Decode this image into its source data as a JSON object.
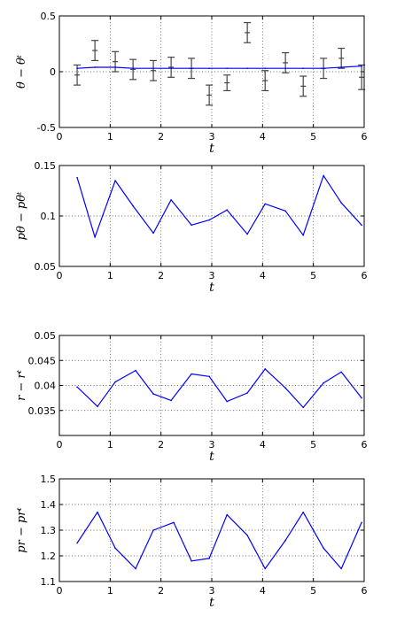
{
  "chart_data": [
    {
      "type": "line",
      "xlabel": "t",
      "ylabel": "θ − θᵗ",
      "xlim": [
        0,
        6
      ],
      "ylim": [
        -0.5,
        0.5
      ],
      "xticks": [
        "0",
        "1",
        "2",
        "3",
        "4",
        "5",
        "6"
      ],
      "yticks": [
        "-0.5",
        "0",
        "0.5"
      ],
      "grid": true,
      "line_color": "#0000ff",
      "errorbar_color": "#444444",
      "series": [
        {
          "x": [
            0.35,
            0.7,
            1.1,
            1.45,
            1.85,
            2.2,
            2.6,
            2.95,
            3.3,
            3.7,
            4.05,
            4.45,
            4.8,
            5.2,
            5.55,
            5.95
          ],
          "values": [
            0.03,
            0.04,
            0.04,
            0.03,
            0.03,
            0.03,
            0.03,
            0.03,
            0.03,
            0.03,
            0.03,
            0.03,
            0.03,
            0.03,
            0.04,
            0.05
          ]
        }
      ],
      "errorbars": [
        {
          "x": 0.35,
          "y": -0.03,
          "err": 0.09
        },
        {
          "x": 0.7,
          "y": 0.19,
          "err": 0.09
        },
        {
          "x": 1.1,
          "y": 0.09,
          "err": 0.09
        },
        {
          "x": 1.45,
          "y": 0.02,
          "err": 0.09
        },
        {
          "x": 1.85,
          "y": 0.01,
          "err": 0.09
        },
        {
          "x": 2.2,
          "y": 0.04,
          "err": 0.09
        },
        {
          "x": 2.6,
          "y": 0.03,
          "err": 0.09
        },
        {
          "x": 2.95,
          "y": -0.21,
          "err": 0.09
        },
        {
          "x": 3.3,
          "y": -0.1,
          "err": 0.07
        },
        {
          "x": 3.7,
          "y": 0.35,
          "err": 0.09
        },
        {
          "x": 4.05,
          "y": -0.08,
          "err": 0.09
        },
        {
          "x": 4.45,
          "y": 0.08,
          "err": 0.09
        },
        {
          "x": 4.8,
          "y": -0.13,
          "err": 0.09
        },
        {
          "x": 5.2,
          "y": 0.03,
          "err": 0.09
        },
        {
          "x": 5.55,
          "y": 0.12,
          "err": 0.09
        },
        {
          "x": 5.95,
          "y": -0.05,
          "err": 0.11
        }
      ]
    },
    {
      "type": "line",
      "xlabel": "t",
      "ylabel": "pθ − pθᵗ",
      "xlim": [
        0,
        6
      ],
      "ylim": [
        0.05,
        0.15
      ],
      "xticks": [
        "0",
        "1",
        "2",
        "3",
        "4",
        "5",
        "6"
      ],
      "yticks": [
        "0.05",
        "0.1",
        "0.15"
      ],
      "grid": true,
      "line_color": "#0000ff",
      "series": [
        {
          "x": [
            0.35,
            0.7,
            1.1,
            1.45,
            1.85,
            2.2,
            2.6,
            2.95,
            3.3,
            3.7,
            4.05,
            4.45,
            4.8,
            5.2,
            5.55,
            5.95
          ],
          "values": [
            0.138,
            0.079,
            0.135,
            0.11,
            0.083,
            0.116,
            0.091,
            0.096,
            0.106,
            0.082,
            0.112,
            0.105,
            0.081,
            0.14,
            0.113,
            0.091
          ]
        }
      ]
    },
    {
      "type": "line",
      "xlabel": "t",
      "ylabel": "r − rᵗ",
      "xlim": [
        0,
        6
      ],
      "ylim": [
        0.03,
        0.05
      ],
      "xticks": [
        "0",
        "1",
        "2",
        "3",
        "4",
        "5",
        "6"
      ],
      "yticks": [
        "0.035",
        "0.04",
        "0.045",
        "0.05"
      ],
      "grid": true,
      "line_color": "#0000ff",
      "series": [
        {
          "x": [
            0.35,
            0.75,
            1.1,
            1.5,
            1.85,
            2.2,
            2.6,
            2.95,
            3.3,
            3.7,
            4.05,
            4.45,
            4.8,
            5.2,
            5.55,
            5.95
          ],
          "values": [
            0.0397,
            0.0358,
            0.0407,
            0.043,
            0.0383,
            0.037,
            0.0423,
            0.0418,
            0.0368,
            0.0385,
            0.0433,
            0.0395,
            0.0356,
            0.0405,
            0.0427,
            0.0375
          ]
        }
      ]
    },
    {
      "type": "line",
      "xlabel": "t",
      "ylabel": "pr − prᵗ",
      "xlim": [
        0,
        6
      ],
      "ylim": [
        1.1,
        1.5
      ],
      "xticks": [
        "0",
        "1",
        "2",
        "3",
        "4",
        "5",
        "6"
      ],
      "yticks": [
        "1.1",
        "1.2",
        "1.3",
        "1.4",
        "1.5"
      ],
      "grid": true,
      "line_color": "#0000ff",
      "series": [
        {
          "x": [
            0.35,
            0.75,
            1.1,
            1.5,
            1.85,
            2.25,
            2.6,
            2.95,
            3.3,
            3.7,
            4.05,
            4.45,
            4.8,
            5.2,
            5.55,
            5.95
          ],
          "values": [
            1.25,
            1.37,
            1.23,
            1.15,
            1.3,
            1.33,
            1.18,
            1.19,
            1.36,
            1.28,
            1.15,
            1.26,
            1.37,
            1.23,
            1.15,
            1.33
          ]
        }
      ]
    }
  ]
}
